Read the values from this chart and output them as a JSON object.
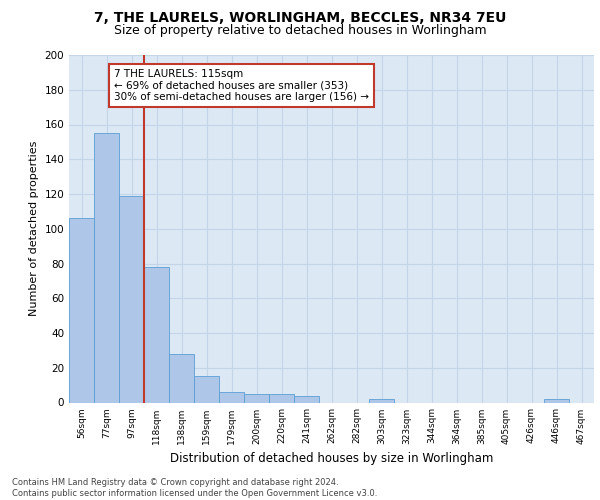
{
  "title1": "7, THE LAURELS, WORLINGHAM, BECCLES, NR34 7EU",
  "title2": "Size of property relative to detached houses in Worlingham",
  "xlabel": "Distribution of detached houses by size in Worlingham",
  "ylabel": "Number of detached properties",
  "categories": [
    "56sqm",
    "77sqm",
    "97sqm",
    "118sqm",
    "138sqm",
    "159sqm",
    "179sqm",
    "200sqm",
    "220sqm",
    "241sqm",
    "262sqm",
    "282sqm",
    "303sqm",
    "323sqm",
    "344sqm",
    "364sqm",
    "385sqm",
    "405sqm",
    "426sqm",
    "446sqm",
    "467sqm"
  ],
  "values": [
    106,
    155,
    119,
    78,
    28,
    15,
    6,
    5,
    5,
    4,
    0,
    0,
    2,
    0,
    0,
    0,
    0,
    0,
    0,
    2,
    0
  ],
  "bar_color": "#aec6e8",
  "bar_edge_color": "#5a9fd4",
  "vline_color": "#c0392b",
  "annotation_text": "7 THE LAURELS: 115sqm\n← 69% of detached houses are smaller (353)\n30% of semi-detached houses are larger (156) →",
  "annotation_box_color": "white",
  "annotation_box_edge_color": "#c0392b",
  "annotation_fontsize": 7.5,
  "ylim": [
    0,
    200
  ],
  "yticks": [
    0,
    20,
    40,
    60,
    80,
    100,
    120,
    140,
    160,
    180,
    200
  ],
  "footer": "Contains HM Land Registry data © Crown copyright and database right 2024.\nContains public sector information licensed under the Open Government Licence v3.0.",
  "plot_bg_color": "#dde8f5",
  "grid_color": "#c5d5e8",
  "title1_fontsize": 10,
  "title2_fontsize": 9,
  "xlabel_fontsize": 8.5,
  "ylabel_fontsize": 8
}
